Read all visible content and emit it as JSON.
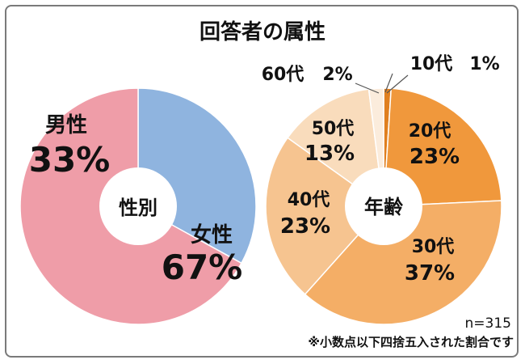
{
  "chart_data": [
    {
      "type": "pie",
      "title": "回答者の属性",
      "center_label": "性別",
      "categories": [
        "男性",
        "女性"
      ],
      "values": [
        33,
        67
      ],
      "value_labels": [
        "33%",
        "67%"
      ],
      "colors": [
        "#8fb4df",
        "#ef9da8"
      ]
    },
    {
      "type": "pie",
      "center_label": "年齢",
      "categories": [
        "10代",
        "20代",
        "30代",
        "40代",
        "50代",
        "60代"
      ],
      "values": [
        1,
        23,
        37,
        23,
        13,
        2
      ],
      "value_labels": [
        "1%",
        "23%",
        "37%",
        "23%",
        "13%",
        "2%"
      ],
      "colors": [
        "#e07f1f",
        "#f0983c",
        "#f4ae66",
        "#f6c490",
        "#f9dcbc",
        "#fbecdc"
      ]
    }
  ],
  "footer": {
    "sample": "n=315",
    "note": "※小数点以下四捨五入された割合です"
  }
}
